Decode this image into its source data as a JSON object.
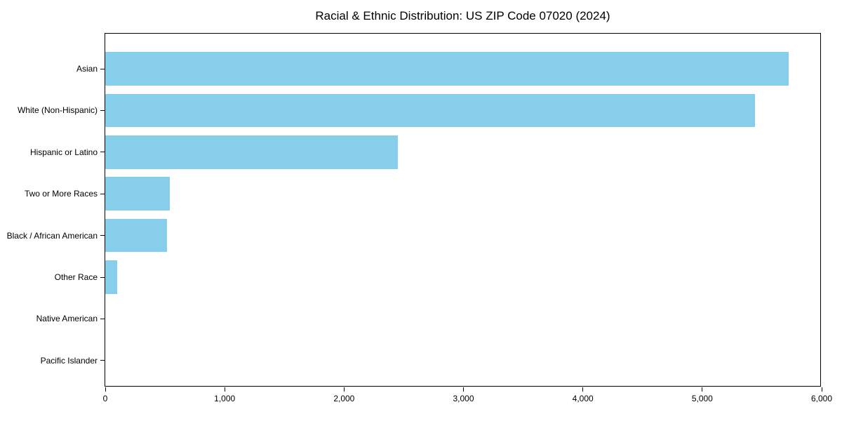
{
  "page": {
    "background_color": "#ffffff",
    "text_color": "#000000"
  },
  "chart_data": {
    "type": "bar",
    "orientation": "horizontal",
    "title": "Racial & Ethnic Distribution: US ZIP Code 07020 (2024)",
    "categories": [
      "Asian",
      "White (Non-Hispanic)",
      "Hispanic or Latino",
      "Two or More Races",
      "Black / African American",
      "Other Race",
      "Native American",
      "Pacific Islander"
    ],
    "values": [
      5725,
      5440,
      2450,
      540,
      515,
      100,
      0,
      0
    ],
    "xlabel": "",
    "ylabel": "",
    "xlim": [
      0,
      6000
    ],
    "xticks": [
      0,
      1000,
      2000,
      3000,
      4000,
      5000,
      6000
    ],
    "xtick_labels": [
      "0",
      "1,000",
      "2,000",
      "3,000",
      "4,000",
      "5,000",
      "6,000"
    ],
    "bar_color": "#87CEEB",
    "grid": false,
    "legend": null
  }
}
